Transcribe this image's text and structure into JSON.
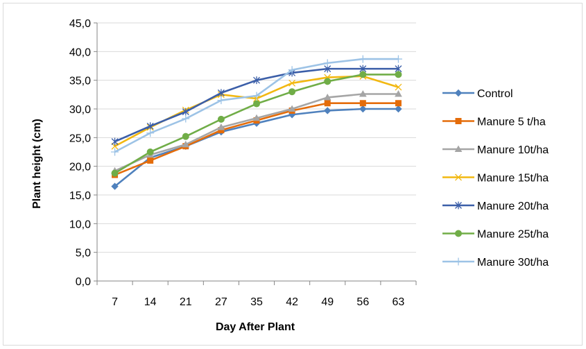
{
  "chart_data": {
    "type": "line",
    "xlabel": "Day After Plant",
    "ylabel": "Plant height (cm)",
    "categories": [
      "7",
      "14",
      "21",
      "27",
      "35",
      "42",
      "49",
      "56",
      "63"
    ],
    "ylim": [
      0,
      45
    ],
    "yticks": [
      "0,0",
      "5,0",
      "10,0",
      "15,0",
      "20,0",
      "25,0",
      "30,0",
      "35,0",
      "40,0",
      "45,0"
    ],
    "grid": true,
    "legend": "right",
    "series": [
      {
        "name": "Control",
        "color": "#4f81bd",
        "marker": "diamond",
        "values": [
          16.5,
          21.5,
          23.5,
          26.0,
          27.5,
          29.0,
          29.7,
          30.0,
          30.0
        ]
      },
      {
        "name": "Manure 5 t/ha",
        "color": "#e46c0a",
        "marker": "square",
        "values": [
          18.5,
          21.0,
          23.5,
          26.3,
          28.0,
          29.7,
          31.0,
          31.0,
          31.0
        ]
      },
      {
        "name": "Manure 10t/ha",
        "color": "#a5a5a5",
        "marker": "triangle",
        "values": [
          19.2,
          22.0,
          23.8,
          26.8,
          28.4,
          30.0,
          32.0,
          32.6,
          32.6
        ]
      },
      {
        "name": "Manure 15t/ha",
        "color": "#f2b811",
        "marker": "x",
        "values": [
          23.5,
          26.8,
          29.8,
          32.5,
          31.8,
          34.5,
          35.5,
          35.7,
          33.8
        ]
      },
      {
        "name": "Manure 20t/ha",
        "color": "#3b5ea8",
        "marker": "star",
        "values": [
          24.3,
          27.0,
          29.5,
          32.8,
          35.0,
          36.3,
          37.0,
          37.0,
          37.0
        ]
      },
      {
        "name": "Manure 25t/ha",
        "color": "#70ad47",
        "marker": "circle",
        "values": [
          18.8,
          22.5,
          25.2,
          28.2,
          30.9,
          33.0,
          34.8,
          36.0,
          36.0
        ]
      },
      {
        "name": "Manure 30t/ha",
        "color": "#9dc3e6",
        "marker": "plus",
        "values": [
          22.5,
          25.8,
          28.3,
          31.5,
          32.3,
          36.8,
          38.0,
          38.7,
          38.7
        ]
      }
    ]
  }
}
